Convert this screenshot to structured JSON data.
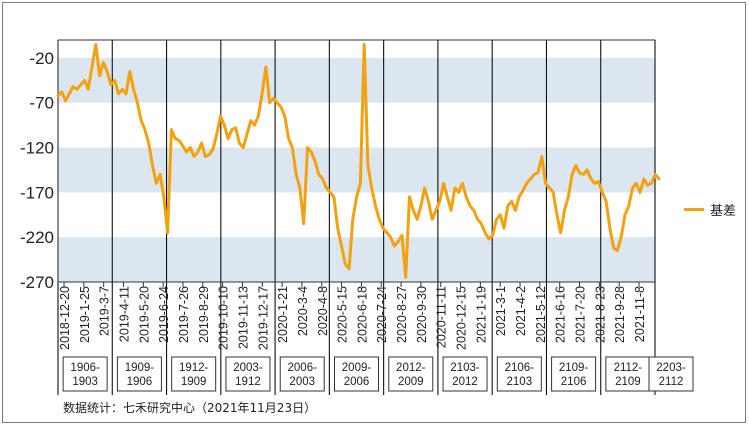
{
  "chart_data": {
    "type": "line",
    "title": "",
    "xlabel": "",
    "ylabel": "",
    "ylim": [
      -270,
      0
    ],
    "yticks": [
      -20,
      -70,
      -120,
      -170,
      -220,
      -270
    ],
    "ytick_labels": [
      "-20",
      "-70",
      "-120",
      "-170",
      "-220",
      "-270"
    ],
    "band_color": "#dce6f1",
    "line_color": "#f2a20e",
    "legend_position": "right",
    "x_tick_labels": [
      "2018-12-20",
      "2019-1-25",
      "2019-3-7",
      "2019-4-11",
      "2019-5-20",
      "2019-6-24",
      "2019-7-26",
      "2019-8-29",
      "2019-10-10",
      "2019-11-13",
      "2019-12-17",
      "2020-1-21",
      "2020-3-4",
      "2020-4-8",
      "2020-5-15",
      "2020-6-18",
      "2020-7-24",
      "2020-8-27",
      "2020-9-30",
      "2020-11-11",
      "2020-12-15",
      "2021-1-19",
      "2021-3-1",
      "2021-4-2",
      "2021-5-12",
      "2021-6-16",
      "2021-7-20",
      "2021-8-23",
      "2021-9-28",
      "2021-11-8"
    ],
    "contract_labels": [
      "1906-1903",
      "1909-1906",
      "1912-1909",
      "2003-1912",
      "2006-2003",
      "2009-2006",
      "2012-2009",
      "2103-2012",
      "2106-2103",
      "2109-2106",
      "2112-2109",
      "2203-2112"
    ],
    "series": [
      {
        "name": "基差",
        "x_index_start": 0,
        "x_index_end": 29,
        "values": [
          -62,
          -58,
          -68,
          -60,
          -52,
          -55,
          -50,
          -45,
          -55,
          -30,
          -5,
          -40,
          -25,
          -35,
          -50,
          -45,
          -60,
          -55,
          -60,
          -35,
          -55,
          -70,
          -90,
          -100,
          -115,
          -140,
          -160,
          -150,
          -175,
          -215,
          -100,
          -110,
          -112,
          -118,
          -125,
          -120,
          -130,
          -125,
          -115,
          -130,
          -128,
          -122,
          -105,
          -85,
          -95,
          -110,
          -100,
          -98,
          -115,
          -120,
          -105,
          -90,
          -95,
          -85,
          -60,
          -30,
          -70,
          -65,
          -70,
          -75,
          -85,
          -110,
          -120,
          -150,
          -165,
          -205,
          -120,
          -125,
          -135,
          -150,
          -155,
          -165,
          -170,
          -175,
          -210,
          -230,
          -250,
          -255,
          -200,
          -175,
          -160,
          -5,
          -140,
          -165,
          -185,
          -200,
          -210,
          -215,
          -220,
          -230,
          -225,
          -218,
          -265,
          -175,
          -190,
          -200,
          -185,
          -165,
          -180,
          -200,
          -190,
          -180,
          -160,
          -175,
          -190,
          -165,
          -170,
          -160,
          -175,
          -185,
          -190,
          -200,
          -205,
          -215,
          -222,
          -218,
          -200,
          -195,
          -210,
          -185,
          -180,
          -190,
          -175,
          -168,
          -160,
          -155,
          -150,
          -148,
          -130,
          -160,
          -165,
          -170,
          -195,
          -215,
          -190,
          -175,
          -150,
          -140,
          -148,
          -150,
          -145,
          -155,
          -160,
          -158,
          -170,
          -180,
          -210,
          -232,
          -235,
          -220,
          -195,
          -185,
          -165,
          -160,
          -170,
          -155,
          -162,
          -160,
          -150,
          -155
        ]
      }
    ]
  },
  "legend": {
    "label": "基差"
  },
  "source": "数据统计：七禾研究中心（2021年11月23日）"
}
